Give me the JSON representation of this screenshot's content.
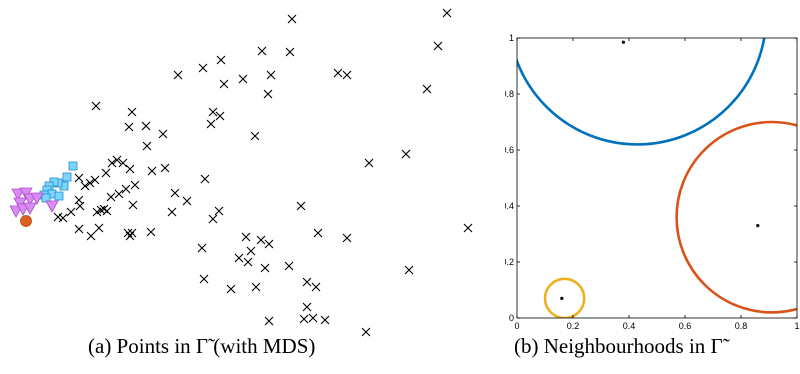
{
  "captions": {
    "a": "(a)  Points in Γ̃ (with MDS)",
    "b": "(b)  Neighbourhoods in Γ̃"
  },
  "chart_data": [
    {
      "type": "scatter",
      "title": "",
      "xlabel": "",
      "ylabel": "",
      "axes": "hidden",
      "xlim": [
        0,
        470
      ],
      "ylim": [
        0,
        330
      ],
      "series": [
        {
          "marker": "x",
          "color": "#000000",
          "points": [
            [
              447,
              13
            ],
            [
              292,
              19
            ],
            [
              438,
              46
            ],
            [
              221,
              60
            ],
            [
              262,
              51
            ],
            [
              290,
              52
            ],
            [
              203,
              68
            ],
            [
              178,
              75
            ],
            [
              243,
              79
            ],
            [
              271,
              75
            ],
            [
              224,
              84
            ],
            [
              268,
              94
            ],
            [
              338,
              73
            ],
            [
              347,
              75
            ],
            [
              427,
              89
            ],
            [
              96,
              106
            ],
            [
              132,
              112
            ],
            [
              213,
              112
            ],
            [
              220,
              116
            ],
            [
              211,
              124
            ],
            [
              129,
              127
            ],
            [
              146,
              126
            ],
            [
              163,
              134
            ],
            [
              255,
              136
            ],
            [
              147,
              146
            ],
            [
              117,
              160
            ],
            [
              112,
              163
            ],
            [
              123,
              163
            ],
            [
              152,
              171
            ],
            [
              165,
              168
            ],
            [
              106,
              173
            ],
            [
              130,
              169
            ],
            [
              406,
              154
            ],
            [
              369,
              163
            ],
            [
              95,
              180
            ],
            [
              90,
              183
            ],
            [
              79,
              178
            ],
            [
              135,
              185
            ],
            [
              205,
              179
            ],
            [
              85,
              186
            ],
            [
              126,
              189
            ],
            [
              119,
              194
            ],
            [
              175,
              193
            ],
            [
              111,
              197
            ],
            [
              79,
              200
            ],
            [
              80,
              206
            ],
            [
              187,
              201
            ],
            [
              133,
              205
            ],
            [
              104,
              209
            ],
            [
              101,
              210
            ],
            [
              107,
              211
            ],
            [
              97,
              212
            ],
            [
              71,
              212
            ],
            [
              58,
              217
            ],
            [
              63,
              218
            ],
            [
              172,
              212
            ],
            [
              219,
              211
            ],
            [
              213,
              219
            ],
            [
              301,
              206
            ],
            [
              468,
              228
            ],
            [
              79,
              229
            ],
            [
              99,
              228
            ],
            [
              91,
              236
            ],
            [
              128,
              233
            ],
            [
              132,
              233
            ],
            [
              151,
              232
            ],
            [
              130,
              236
            ],
            [
              246,
              237
            ],
            [
              261,
              240
            ],
            [
              269,
              244
            ],
            [
              318,
              233
            ],
            [
              347,
              238
            ],
            [
              251,
              251
            ],
            [
              202,
              248
            ],
            [
              239,
              258
            ],
            [
              248,
              262
            ],
            [
              265,
              268
            ],
            [
              289,
              266
            ],
            [
              409,
              270
            ],
            [
              204,
              279
            ],
            [
              256,
              287
            ],
            [
              307,
              282
            ],
            [
              316,
              287
            ],
            [
              231,
              289
            ],
            [
              307,
              307
            ],
            [
              304,
              319
            ],
            [
              313,
              318
            ],
            [
              269,
              321
            ],
            [
              325,
              320
            ],
            [
              366,
              332
            ]
          ]
        },
        {
          "marker": "square",
          "color": "#7fd3ff",
          "points": [
            [
              73,
              166
            ],
            [
              67,
              177
            ],
            [
              64,
              186
            ],
            [
              58,
              183
            ],
            [
              54,
              182
            ],
            [
              49,
              186
            ],
            [
              47,
              190
            ],
            [
              52,
              194
            ],
            [
              59,
              196
            ],
            [
              44,
              195
            ],
            [
              46,
              198
            ]
          ]
        },
        {
          "marker": "triangle-down",
          "color": "#d98cf0",
          "points": [
            [
              18,
              194
            ],
            [
              26,
              193
            ],
            [
              30,
              199
            ],
            [
              20,
              203
            ],
            [
              16,
              211
            ],
            [
              23,
              209
            ],
            [
              30,
              208
            ],
            [
              52,
              206
            ],
            [
              37,
              198
            ]
          ]
        },
        {
          "marker": "circle",
          "color": "#e0601f",
          "points": [
            [
              26,
              221
            ]
          ]
        }
      ]
    },
    {
      "type": "scatter",
      "title": "",
      "xlabel": "",
      "ylabel": "",
      "xlim": [
        0,
        1
      ],
      "ylim": [
        0,
        1
      ],
      "xticks": [
        "0",
        "0.2",
        "0.4",
        "0.6",
        "0.8",
        "1"
      ],
      "yticks": [
        "0",
        "0.2",
        "0.4",
        "0.6",
        "0.8",
        "1"
      ],
      "points": [
        {
          "x": 0.38,
          "y": 0.985
        },
        {
          "x": 0.86,
          "y": 0.33
        },
        {
          "x": 0.16,
          "y": 0.07
        }
      ],
      "circles": [
        {
          "cx": 0.43,
          "cy": 1.08,
          "r": 0.46,
          "color": "#0072bd"
        },
        {
          "cx": 0.91,
          "cy": 0.36,
          "r": 0.34,
          "color": "#d95319"
        },
        {
          "cx": 0.17,
          "cy": 0.07,
          "r": 0.07,
          "color": "#edb120"
        }
      ]
    }
  ]
}
